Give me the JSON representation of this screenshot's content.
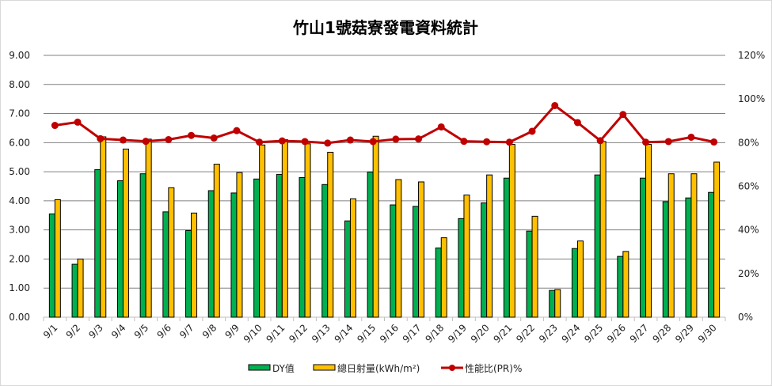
{
  "chart_data": {
    "type": "bar+line",
    "title": "竹山1號菇寮發電資料統計",
    "categories": [
      "9/1",
      "9/2",
      "9/3",
      "9/4",
      "9/5",
      "9/6",
      "9/7",
      "9/8",
      "9/9",
      "9/10",
      "9/11",
      "9/12",
      "9/13",
      "9/14",
      "9/15",
      "9/16",
      "9/17",
      "9/18",
      "9/19",
      "9/20",
      "9/21",
      "9/22",
      "9/23",
      "9/24",
      "9/25",
      "9/26",
      "9/27",
      "9/28",
      "9/29",
      "9/30"
    ],
    "series": [
      {
        "name": "DY值",
        "type": "bar",
        "axis": "left",
        "color": "#00b050",
        "values": [
          3.55,
          1.82,
          5.07,
          4.69,
          4.93,
          3.62,
          2.98,
          4.35,
          4.27,
          4.75,
          4.91,
          4.8,
          4.56,
          3.31,
          4.99,
          3.86,
          3.81,
          2.38,
          3.39,
          3.93,
          4.78,
          2.96,
          0.92,
          2.36,
          4.89,
          2.09,
          4.78,
          3.97,
          4.1,
          4.29
        ]
      },
      {
        "name": "總日射量(kWh/m²)",
        "type": "bar",
        "axis": "left",
        "color": "#ffc000",
        "values": [
          4.04,
          2.0,
          6.2,
          5.78,
          6.12,
          4.45,
          3.58,
          5.26,
          4.97,
          5.92,
          6.1,
          5.96,
          5.67,
          4.07,
          6.22,
          4.73,
          4.65,
          2.73,
          4.2,
          4.89,
          5.94,
          3.47,
          0.95,
          2.62,
          6.04,
          2.26,
          5.94,
          4.93,
          4.93,
          5.33
        ]
      },
      {
        "name": "性能比(PR)%",
        "type": "line",
        "axis": "right",
        "color": "#c00000",
        "values": [
          87.9,
          89.4,
          81.8,
          81.2,
          80.6,
          81.4,
          83.3,
          82.1,
          85.5,
          80.2,
          80.8,
          80.5,
          79.8,
          81.2,
          80.5,
          81.6,
          81.7,
          87.2,
          80.6,
          80.4,
          80.2,
          85.2,
          97.0,
          89.2,
          80.9,
          92.9,
          80.2,
          80.5,
          82.5,
          80.3
        ]
      }
    ],
    "ylim": [
      0,
      9
    ],
    "yticks": [
      "0.00",
      "1.00",
      "2.00",
      "3.00",
      "4.00",
      "5.00",
      "6.00",
      "7.00",
      "8.00",
      "9.00"
    ],
    "y2lim": [
      0,
      120
    ],
    "y2ticks": [
      "0%",
      "20%",
      "40%",
      "60%",
      "80%",
      "100%",
      "120%"
    ],
    "grid": true,
    "legend": "bottom"
  }
}
